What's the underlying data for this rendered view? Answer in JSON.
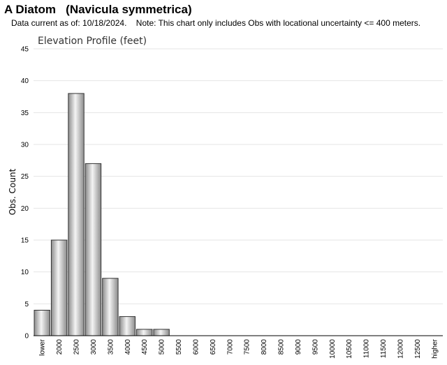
{
  "header": {
    "title": "A Diatom   (Navicula symmetrica)",
    "note": "Data current as of: 10/18/2024.    Note: This chart only includes Obs with locational uncertainty <= 400 meters."
  },
  "chart_data": {
    "type": "bar",
    "title": "Elevation Profile (feet)",
    "xlabel": "",
    "ylabel": "Obs. Count",
    "ylim": [
      0,
      45
    ],
    "yticks": [
      0,
      5,
      10,
      15,
      20,
      25,
      30,
      35,
      40,
      45
    ],
    "grid": true,
    "categories": [
      "lower",
      "2000",
      "2500",
      "3000",
      "3500",
      "4000",
      "4500",
      "5000",
      "5500",
      "6000",
      "6500",
      "7000",
      "7500",
      "8000",
      "8500",
      "9000",
      "9500",
      "10000",
      "10500",
      "11000",
      "11500",
      "12000",
      "12500",
      "higher"
    ],
    "values": [
      4,
      15,
      38,
      27,
      9,
      3,
      1,
      1,
      0,
      0,
      0,
      0,
      0,
      0,
      0,
      0,
      0,
      0,
      0,
      0,
      0,
      0,
      0,
      0
    ],
    "colors": {
      "bar_light": "#f4f4f4",
      "bar_dark": "#8c8c8c",
      "bar_stroke": "#333333",
      "grid": "#e4e4e4",
      "axis": "#000000"
    }
  }
}
